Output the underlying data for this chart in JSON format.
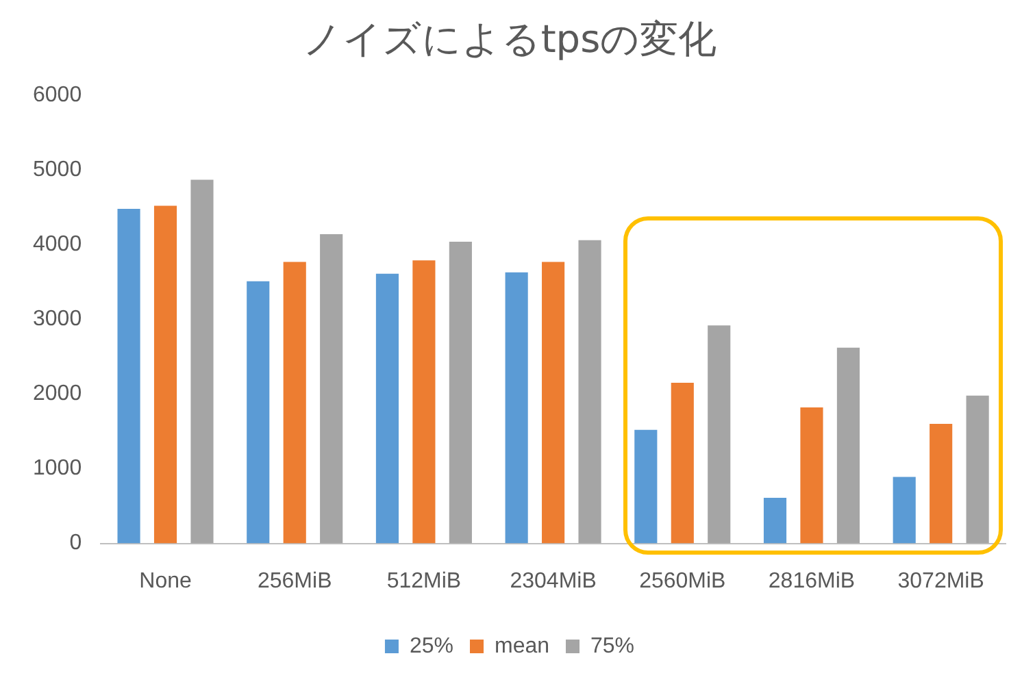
{
  "chart_data": {
    "type": "bar",
    "title": "ノイズによるtpsの変化",
    "categories": [
      "None",
      "256MiB",
      "512MiB",
      "2304MiB",
      "2560MiB",
      "2816MiB",
      "3072MiB"
    ],
    "series": [
      {
        "name": "25%",
        "color": "#5b9bd5",
        "values": [
          4480,
          3510,
          3610,
          3630,
          1520,
          610,
          890
        ]
      },
      {
        "name": "mean",
        "color": "#ed7d31",
        "values": [
          4520,
          3770,
          3790,
          3770,
          2150,
          1820,
          1600
        ]
      },
      {
        "name": "75%",
        "color": "#a5a5a5",
        "values": [
          4870,
          4140,
          4040,
          4060,
          2920,
          2620,
          1980
        ]
      }
    ],
    "ylim": [
      0,
      6000
    ],
    "yticks": [
      0,
      1000,
      2000,
      3000,
      4000,
      5000,
      6000
    ],
    "grid": false,
    "legend": "bottom"
  }
}
